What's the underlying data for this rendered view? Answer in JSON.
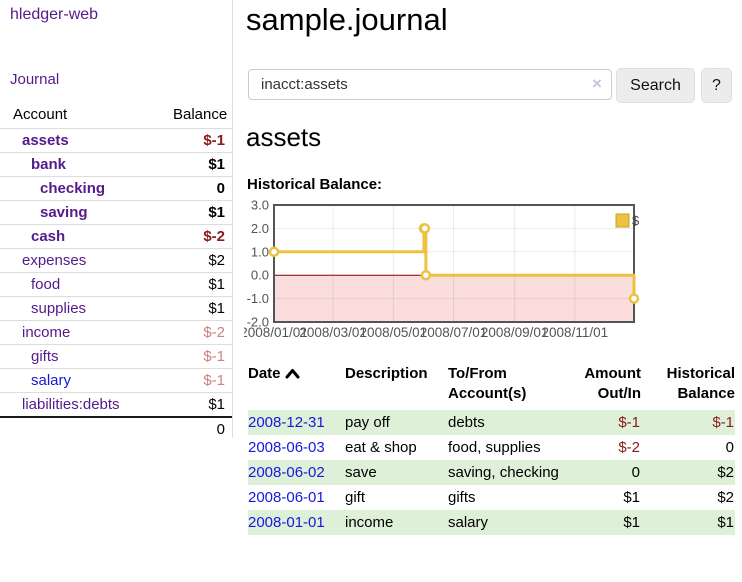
{
  "app": {
    "title": "hledger-web",
    "nav_journal": "Journal"
  },
  "colors": {
    "link_purple": "#551a8b",
    "link_blue": "#1717dd",
    "negative_red": "#8b1a1a",
    "negative_muted": "#c98383",
    "row_green": "#dff0d8",
    "chart_gold": "#edc240",
    "chart_negative_fill": "#fbdddd",
    "chart_zero_line": "#8b0000",
    "chart_border": "#545454"
  },
  "sidebar": {
    "accounts_header": {
      "account": "Account",
      "balance": "Balance"
    },
    "accounts": [
      {
        "name": "assets",
        "depth": 1,
        "balance": "$-1",
        "bold": true
      },
      {
        "name": "bank",
        "depth": 2,
        "balance": "$1",
        "bold": true
      },
      {
        "name": "checking",
        "depth": 3,
        "balance": "0",
        "bold": true
      },
      {
        "name": "saving",
        "depth": 3,
        "balance": "$1",
        "bold": true
      },
      {
        "name": "cash",
        "depth": 2,
        "balance": "$-2",
        "bold": true
      },
      {
        "name": "expenses",
        "depth": 1,
        "balance": "$2",
        "bold": false
      },
      {
        "name": "food",
        "depth": 2,
        "balance": "$1",
        "bold": false
      },
      {
        "name": "supplies",
        "depth": 2,
        "balance": "$1",
        "bold": false
      },
      {
        "name": "income",
        "depth": 1,
        "balance": "$-2",
        "bold": false
      },
      {
        "name": "gifts",
        "depth": 2,
        "balance": "$-1",
        "bold": false
      },
      {
        "name": "salary",
        "depth": 2,
        "balance": "$-1",
        "bold": false,
        "unvisited": true
      },
      {
        "name": "liabilities:debts",
        "depth": 1,
        "balance": "$1",
        "bold": false
      }
    ],
    "total": "0"
  },
  "header": {
    "title": "sample.journal"
  },
  "search": {
    "value": "inacct:assets",
    "clear_icon": "×",
    "button": "Search",
    "help_button": "?"
  },
  "account_page": {
    "title": "assets"
  },
  "chart_data": {
    "type": "line",
    "title": "Historical Balance:",
    "style": "step",
    "series": [
      {
        "name": "$",
        "color": "#edc240",
        "points": [
          {
            "x": "2008-01-01",
            "y": 1
          },
          {
            "x": "2008-06-01",
            "y": 2
          },
          {
            "x": "2008-06-02",
            "y": 2
          },
          {
            "x": "2008-06-03",
            "y": 0
          },
          {
            "x": "2008-12-31",
            "y": -1
          }
        ]
      }
    ],
    "ylim": [
      -2,
      3
    ],
    "yticks": [
      "3.0",
      "2.0",
      "1.0",
      "0.0",
      "-1.0",
      "-2.0"
    ],
    "xticks": [
      "2008/01/01",
      "2008/03/01",
      "2008/05/01",
      "2008/07/01",
      "2008/09/01",
      "2008/11/01"
    ],
    "x_range": [
      "2008-01-01",
      "2008-12-31"
    ],
    "grid": true,
    "legend_position": "top-right",
    "negative_region_shaded": true
  },
  "register": {
    "columns": [
      {
        "label": "Date",
        "sorted": "ascending"
      },
      {
        "label": "Description"
      },
      {
        "label": "To/From Account(s)"
      },
      {
        "label": "Amount Out/In"
      },
      {
        "label": "Historical Balance"
      }
    ],
    "rows": [
      {
        "date": "2008-12-31",
        "description": "pay off",
        "accounts": "debts",
        "amount": "$-1",
        "balance": "$-1"
      },
      {
        "date": "2008-06-03",
        "description": "eat & shop",
        "accounts": "food, supplies",
        "amount": "$-2",
        "balance": "0"
      },
      {
        "date": "2008-06-02",
        "description": "save",
        "accounts": "saving, checking",
        "amount": "0",
        "balance": "$2"
      },
      {
        "date": "2008-06-01",
        "description": "gift",
        "accounts": "gifts",
        "amount": "$1",
        "balance": "$2"
      },
      {
        "date": "2008-01-01",
        "description": "income",
        "accounts": "salary",
        "amount": "$1",
        "balance": "$1"
      }
    ]
  }
}
